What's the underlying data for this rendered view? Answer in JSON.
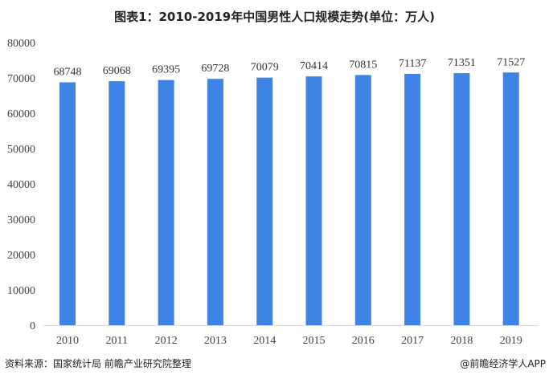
{
  "chart_data": {
    "type": "bar",
    "title": "图表1：2010-2019年中国男性人口规模走势(单位：万人)",
    "categories": [
      "2010",
      "2011",
      "2012",
      "2013",
      "2014",
      "2015",
      "2016",
      "2017",
      "2018",
      "2019"
    ],
    "values": [
      68748,
      69068,
      69395,
      69728,
      70079,
      70414,
      70815,
      71137,
      71351,
      71527
    ],
    "ylim": [
      0,
      80000
    ],
    "yticks": [
      "0",
      "10000",
      "20000",
      "30000",
      "40000",
      "50000",
      "60000",
      "70000",
      "80000"
    ],
    "xlabel": "",
    "ylabel": "",
    "grid": false,
    "bar_color": "#3F84E5"
  },
  "footer": {
    "source": "资料来源：国家统计局 前瞻产业研究院整理",
    "credit": "@前瞻经济学人APP"
  }
}
